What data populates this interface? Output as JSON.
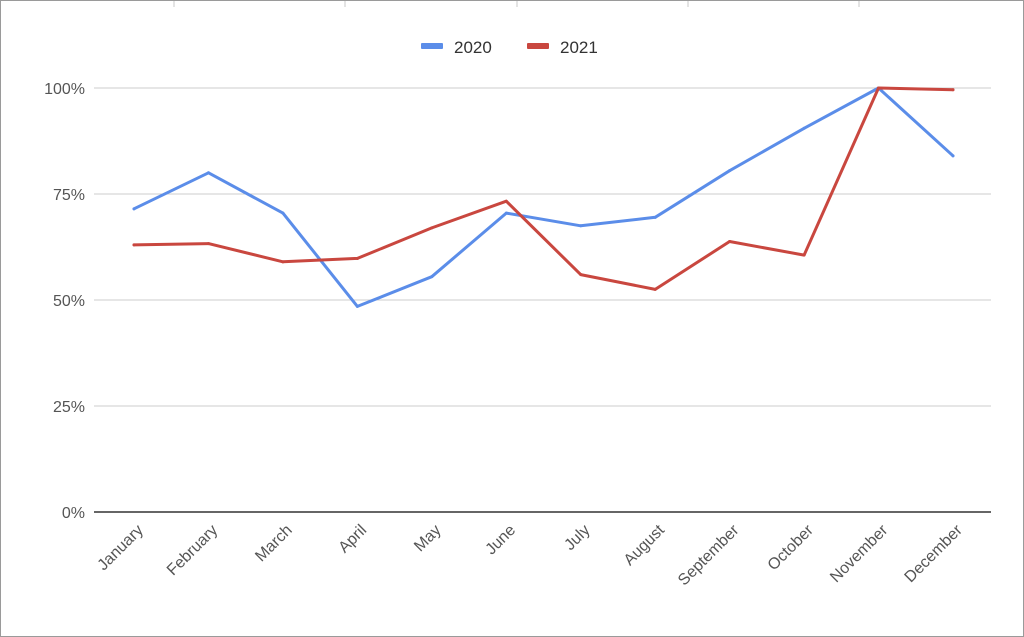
{
  "chart_data": {
    "type": "line",
    "categories": [
      "January",
      "February",
      "March",
      "April",
      "May",
      "June",
      "July",
      "August",
      "September",
      "October",
      "November",
      "December"
    ],
    "series": [
      {
        "name": "2020",
        "color": "#5b8de9",
        "values": [
          71.5,
          80,
          70.5,
          48.5,
          55.5,
          70.5,
          67.5,
          69.5,
          80.5,
          90.5,
          100,
          84
        ]
      },
      {
        "name": "2021",
        "color": "#c9473f",
        "values": [
          63,
          63.3,
          59,
          59.8,
          67,
          73.3,
          56,
          52.5,
          63.8,
          60.6,
          100,
          99.6
        ]
      }
    ],
    "yticks": [
      "0%",
      "25%",
      "50%",
      "75%",
      "100%"
    ],
    "ytick_values": [
      0,
      25,
      50,
      75,
      100
    ],
    "ylim": [
      0,
      100
    ],
    "legend_position": "top",
    "grid": true
  }
}
